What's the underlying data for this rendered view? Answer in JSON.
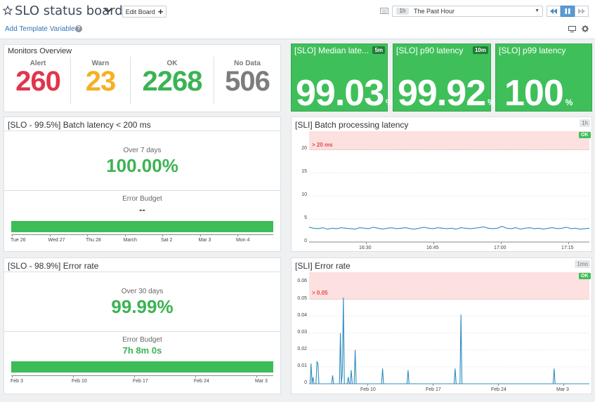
{
  "header": {
    "title": "SLO status board",
    "edit_label": "Edit Board",
    "template_vars_label": "Add Template Variables",
    "time_badge": "1h",
    "time_range": "The Past Hour"
  },
  "monitors": {
    "title": "Monitors Overview",
    "cells": [
      {
        "label": "Alert",
        "value": "260",
        "color": "#e0364d"
      },
      {
        "label": "Warn",
        "value": "23",
        "color": "#f6b024"
      },
      {
        "label": "OK",
        "value": "2268",
        "color": "#3cb353"
      },
      {
        "label": "No Data",
        "value": "506",
        "color": "#7d7d7d"
      }
    ]
  },
  "slo_tiles": [
    {
      "title": "[SLO] Median late...",
      "tag": "5m",
      "value": "99.03",
      "unit": "%"
    },
    {
      "title": "[SLO] p90 latency",
      "tag": "10m",
      "value": "99.92",
      "unit": "%"
    },
    {
      "title": "[SLO] p99 latency",
      "tag": "",
      "value": "100",
      "unit": "%"
    }
  ],
  "slo_batch": {
    "title": "[SLO - 99.5%] Batch latency < 200 ms",
    "period": "Over 7 days",
    "value": "100.00%",
    "budget_label": "Error Budget",
    "budget_value": "--",
    "ticks": [
      "Tue 26",
      "Wed 27",
      "Thu 28",
      "March",
      "Sat 2",
      "Mar 3",
      "Mon 4"
    ]
  },
  "slo_error": {
    "title": "[SLO - 98.9%] Error rate",
    "period": "Over 30 days",
    "value": "99.99%",
    "budget_label": "Error Budget",
    "budget_value": "7h 8m 0s",
    "ticks": [
      "Feb 3",
      "Feb 10",
      "Feb 17",
      "Feb 24",
      "Mar 3"
    ]
  },
  "chart_data": [
    {
      "type": "line",
      "title": "[SLI] Batch processing latency",
      "range_tag": "1h",
      "status": "OK",
      "threshold_label": "> 20 ms",
      "threshold": 20,
      "ylim": [
        0,
        24
      ],
      "yticks": [
        0,
        5,
        10,
        15,
        20
      ],
      "xticks": [
        "16:30",
        "16:45",
        "17:00",
        "17:15"
      ],
      "series": [
        {
          "values": [
            3.2,
            3.0,
            2.9,
            3.1,
            2.8,
            3.0,
            2.9,
            3.1,
            3.0,
            2.9,
            2.8,
            3.1,
            3.0,
            2.9,
            3.2,
            3.0,
            2.8,
            3.0,
            3.1,
            2.9,
            3.0,
            3.1,
            2.9,
            2.8,
            3.0,
            3.2,
            3.0,
            2.9,
            3.1,
            3.0,
            2.9,
            3.0,
            2.8,
            3.1,
            3.0,
            2.9,
            3.0,
            3.1,
            3.3,
            3.0,
            2.9,
            3.0,
            3.4,
            3.0,
            2.9,
            3.1,
            2.8,
            3.0,
            3.1,
            2.9,
            3.0,
            2.8,
            3.0,
            3.1,
            2.9,
            3.0,
            3.2,
            2.9,
            3.0,
            2.8,
            2.9,
            3.0
          ]
        }
      ]
    },
    {
      "type": "line",
      "title": "[SLI] Error rate",
      "range_tag": "1mo",
      "status": "OK",
      "threshold_label": "> 0.05",
      "threshold": 0.05,
      "ylim": [
        0,
        0.066
      ],
      "yticks": [
        0,
        0.01,
        0.02,
        0.03,
        0.04,
        0.05,
        0.06
      ],
      "xticks": [
        "Feb 10",
        "Feb 17",
        "Feb 24",
        "Mar 3"
      ],
      "series": [
        {
          "values": [
            0,
            0,
            0.012,
            0,
            0.004,
            0,
            0,
            0,
            0.013,
            0.012,
            0,
            0,
            0,
            0,
            0,
            0,
            0,
            0,
            0,
            0,
            0,
            0,
            0,
            0,
            0.005,
            0,
            0,
            0,
            0,
            0,
            0,
            0,
            0.03,
            0,
            0.007,
            0.051,
            0,
            0,
            0,
            0,
            0.004,
            0,
            0,
            0.008,
            0,
            0,
            0,
            0.02,
            0,
            0,
            0,
            0,
            0,
            0,
            0,
            0,
            0,
            0,
            0,
            0,
            0,
            0,
            0,
            0,
            0,
            0,
            0,
            0,
            0,
            0,
            0,
            0,
            0,
            0,
            0,
            0.009,
            0,
            0,
            0,
            0,
            0,
            0,
            0,
            0,
            0,
            0,
            0,
            0,
            0,
            0,
            0,
            0,
            0,
            0,
            0,
            0,
            0,
            0,
            0,
            0,
            0,
            0.008,
            0,
            0,
            0,
            0,
            0,
            0,
            0,
            0,
            0,
            0,
            0,
            0,
            0,
            0,
            0,
            0,
            0,
            0,
            0,
            0,
            0,
            0,
            0,
            0,
            0,
            0,
            0,
            0,
            0,
            0,
            0,
            0,
            0,
            0,
            0,
            0,
            0,
            0,
            0,
            0,
            0,
            0,
            0,
            0,
            0,
            0,
            0,
            0.009,
            0,
            0,
            0,
            0,
            0,
            0.041,
            0,
            0,
            0,
            0,
            0,
            0,
            0,
            0,
            0,
            0,
            0,
            0,
            0,
            0,
            0,
            0,
            0,
            0,
            0,
            0,
            0,
            0,
            0,
            0,
            0,
            0,
            0,
            0,
            0,
            0,
            0,
            0,
            0,
            0,
            0,
            0,
            0,
            0,
            0,
            0,
            0,
            0,
            0,
            0,
            0,
            0,
            0,
            0,
            0,
            0,
            0,
            0,
            0,
            0,
            0,
            0,
            0,
            0,
            0,
            0,
            0,
            0,
            0,
            0,
            0,
            0,
            0,
            0,
            0,
            0,
            0,
            0,
            0,
            0,
            0,
            0,
            0,
            0,
            0,
            0,
            0,
            0,
            0,
            0,
            0,
            0,
            0,
            0,
            0,
            0,
            0,
            0,
            0,
            0,
            0.009,
            0,
            0,
            0,
            0,
            0,
            0,
            0,
            0,
            0,
            0,
            0,
            0,
            0,
            0,
            0,
            0,
            0,
            0,
            0,
            0,
            0,
            0,
            0,
            0,
            0,
            0,
            0,
            0,
            0,
            0,
            0,
            0,
            0,
            0,
            0,
            0
          ]
        }
      ]
    }
  ]
}
